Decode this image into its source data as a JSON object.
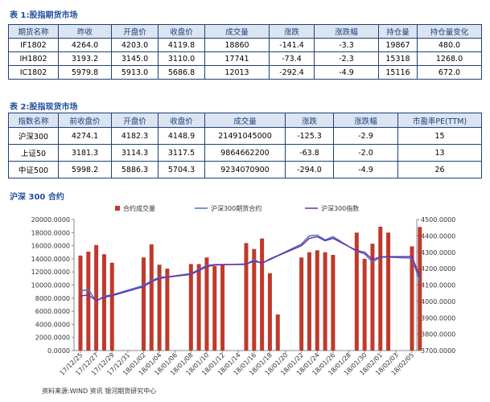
{
  "table1": {
    "title": "表 1:股指期货市场",
    "header": [
      "期货名称",
      "昨收",
      "开盘价",
      "收盘价",
      "成交量",
      "涨跌",
      "涨跌幅",
      "持仓量",
      "持仓量变化"
    ],
    "rows": [
      [
        "IF1802",
        "4264.0",
        "4203.0",
        "4119.8",
        "18860",
        "-141.4",
        "-3.3",
        "19867",
        "480.0"
      ],
      [
        "IH1802",
        "3193.2",
        "3145.0",
        "3110.0",
        "17741",
        "-73.4",
        "-2.3",
        "15318",
        "1268.0"
      ],
      [
        "IC1802",
        "5979.8",
        "5913.0",
        "5686.8",
        "12013",
        "-292.4",
        "-4.9",
        "15116",
        "672.0"
      ]
    ]
  },
  "table2": {
    "title": "表 2:股指现货市场",
    "header": [
      "指数名称",
      "前收盘价",
      "开盘价",
      "收盘价",
      "成交量",
      "涨跌",
      "涨跌幅",
      "市盈率PE(TTM)"
    ],
    "rows": [
      [
        "沪深300",
        "4274.1",
        "4182.3",
        "4148.9",
        "21491045000",
        "-125.3",
        "-2.9",
        "15"
      ],
      [
        "上证50",
        "3181.3",
        "3114.3",
        "3117.5",
        "9864662200",
        "-63.8",
        "-2.0",
        "13"
      ],
      [
        "中证500",
        "5998.2",
        "5886.3",
        "5704.3",
        "9234070900",
        "-294.0",
        "-4.9",
        "26"
      ]
    ]
  },
  "chart_data": {
    "type": "bar-line",
    "title": "沪深 300 合约",
    "x": [
      "17/12/25",
      "17/12/26",
      "17/12/27",
      "17/12/28",
      "17/12/29",
      "18/01/02",
      "18/01/03",
      "18/01/04",
      "18/01/05",
      "18/01/08",
      "18/01/09",
      "18/01/10",
      "18/01/11",
      "18/01/12",
      "18/01/15",
      "18/01/16",
      "18/01/17",
      "18/01/18",
      "18/01/19",
      "18/01/22",
      "18/01/23",
      "18/01/24",
      "18/01/25",
      "18/01/26",
      "18/01/29",
      "18/01/30",
      "18/01/31",
      "18/02/01",
      "18/02/02",
      "18/02/05",
      "18/02/06"
    ],
    "xticks": [
      "17/12/25",
      "17/12/27",
      "17/12/29",
      "17/12/31",
      "18/01/02",
      "18/01/04",
      "18/01/06",
      "18/01/08",
      "18/01/10",
      "18/01/12",
      "18/01/14",
      "18/01/16",
      "18/01/18",
      "18/01/20",
      "18/01/22",
      "18/01/24",
      "18/01/26",
      "18/01/28",
      "18/01/30",
      "18/02/01",
      "18/02/03",
      "18/02/05"
    ],
    "series": [
      {
        "name": "合约成交量",
        "color": "#c0392b",
        "values": [
          14500,
          15100,
          16100,
          14700,
          13400,
          14200,
          16200,
          13100,
          12500,
          13200,
          13200,
          14200,
          12900,
          13100,
          16400,
          15500,
          17100,
          11800,
          5500,
          14200,
          15000,
          15300,
          15000,
          14600,
          18000,
          14000,
          16300,
          18900,
          18000,
          15900,
          18860
        ]
      },
      {
        "name": "沪深300期货合约",
        "color": "#4472c4",
        "axis": "y2",
        "values": [
          4063,
          4073,
          4000,
          4033,
          4040,
          4097,
          4127,
          4147,
          4150,
          4170,
          4195,
          4220,
          4225,
          4225,
          4225,
          4255,
          4230,
          4260,
          4280,
          4350,
          4400,
          4405,
          4375,
          4395,
          4305,
          4290,
          4240,
          4270,
          4270,
          4264,
          4120
        ]
      },
      {
        "name": "沪深300指数",
        "color": "#7030a0",
        "axis": "y2",
        "values": [
          4033,
          4040,
          4005,
          4025,
          4035,
          4090,
          4120,
          4140,
          4148,
          4165,
          4188,
          4212,
          4222,
          4224,
          4228,
          4245,
          4235,
          4255,
          4278,
          4340,
          4385,
          4395,
          4370,
          4385,
          4310,
          4300,
          4255,
          4272,
          4273,
          4274,
          4149
        ]
      }
    ],
    "ylim": [
      0,
      20000
    ],
    "yticks": [
      {
        "value": 0,
        "label": "0.0000"
      },
      {
        "value": 2000,
        "label": "2000.0000"
      },
      {
        "value": 4000,
        "label": "4000.0000"
      },
      {
        "value": 6000,
        "label": "6000.0000"
      },
      {
        "value": 8000,
        "label": "8000.0000"
      },
      {
        "value": 10000,
        "label": "10000.0000"
      },
      {
        "value": 12000,
        "label": "12000.0000"
      },
      {
        "value": 14000,
        "label": "14000.0000"
      },
      {
        "value": 16000,
        "label": "16000.0000"
      },
      {
        "value": 18000,
        "label": "18000.0000"
      },
      {
        "value": 20000,
        "label": "20000.0000"
      }
    ],
    "y2lim": [
      3700,
      4500
    ],
    "y2ticks": [
      {
        "value": 3700,
        "label": "3700.0000"
      },
      {
        "value": 3800,
        "label": "3800.0000"
      },
      {
        "value": 3900,
        "label": "3900.0000"
      },
      {
        "value": 4000,
        "label": "4000.0000"
      },
      {
        "value": 4100,
        "label": "4100.0000"
      },
      {
        "value": 4200,
        "label": "4200.0000"
      },
      {
        "value": 4300,
        "label": "4300.0000"
      },
      {
        "value": 4400,
        "label": "4400.0000"
      },
      {
        "value": 4500,
        "label": "4500.0000"
      }
    ]
  },
  "footer": "资料来源:WIND 资讯   银河期货研究中心"
}
